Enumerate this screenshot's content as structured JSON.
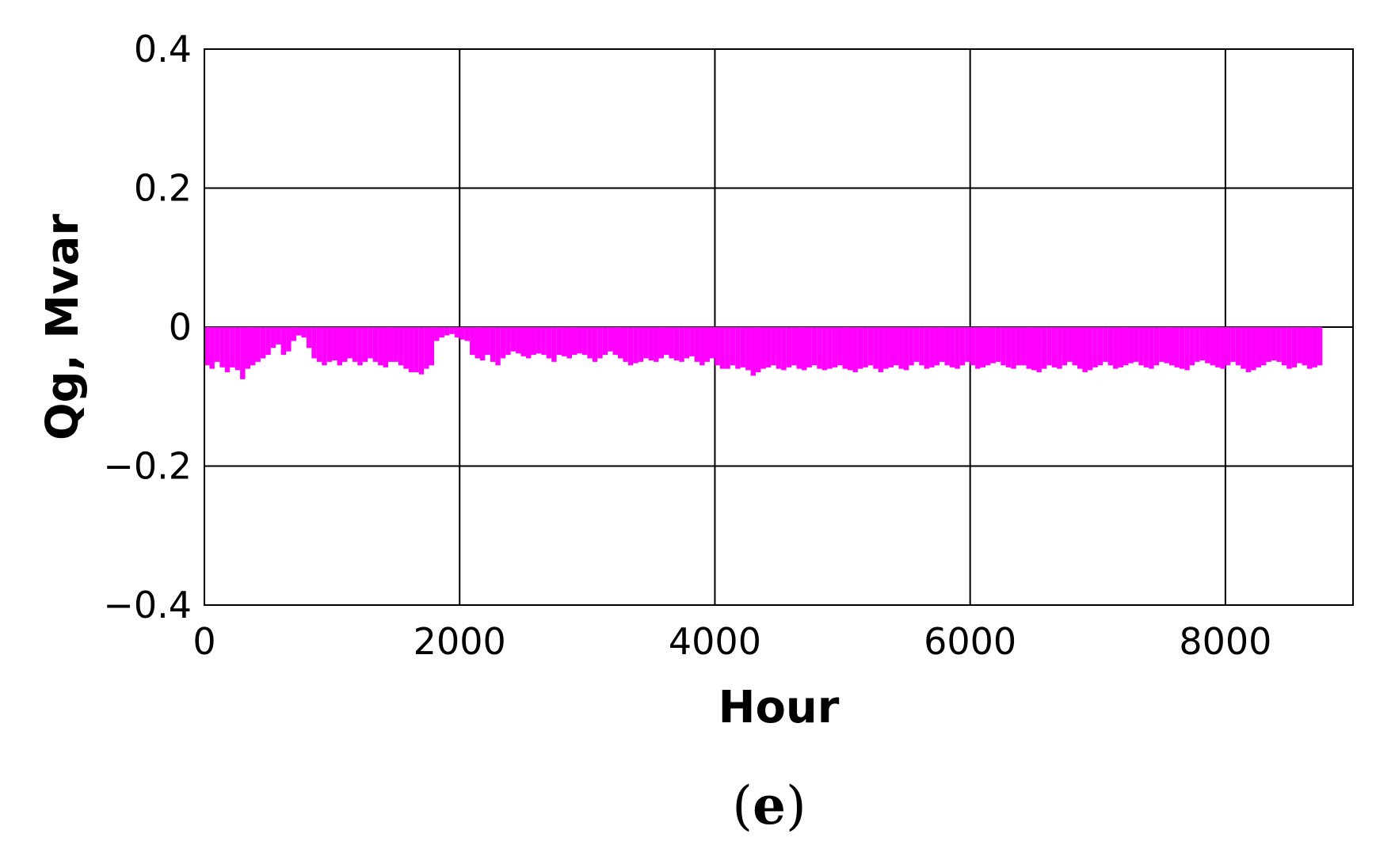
{
  "figure": {
    "caption_open": "(",
    "caption_letter": "e",
    "caption_close": ")"
  },
  "chart_data": {
    "type": "bar",
    "title": "",
    "xlabel": "Hour",
    "ylabel": "Qg, Mvar",
    "xlim": [
      0,
      9000
    ],
    "ylim": [
      -0.4,
      0.4
    ],
    "x_ticks": [
      0,
      2000,
      4000,
      6000,
      8000
    ],
    "x_tick_labels": [
      "0",
      "2000",
      "4000",
      "6000",
      "8000"
    ],
    "y_ticks": [
      0.4,
      0.2,
      0,
      -0.2,
      -0.4
    ],
    "y_tick_labels": [
      "0.4",
      "0.2",
      "0",
      "−0.2",
      "−0.4"
    ],
    "grid": true,
    "legend": "none",
    "series": [
      {
        "color": "#ff00ff",
        "x_range": [
          0,
          8760
        ],
        "x_step": 40,
        "values": [
          -0.055,
          -0.06,
          -0.05,
          -0.058,
          -0.065,
          -0.058,
          -0.062,
          -0.075,
          -0.06,
          -0.055,
          -0.05,
          -0.045,
          -0.04,
          -0.03,
          -0.025,
          -0.04,
          -0.035,
          -0.02,
          -0.012,
          -0.015,
          -0.03,
          -0.045,
          -0.05,
          -0.055,
          -0.05,
          -0.048,
          -0.055,
          -0.05,
          -0.045,
          -0.05,
          -0.055,
          -0.05,
          -0.045,
          -0.05,
          -0.055,
          -0.058,
          -0.05,
          -0.05,
          -0.055,
          -0.06,
          -0.065,
          -0.065,
          -0.068,
          -0.06,
          -0.055,
          -0.02,
          -0.015,
          -0.012,
          -0.01,
          -0.015,
          -0.018,
          -0.02,
          -0.04,
          -0.045,
          -0.048,
          -0.04,
          -0.05,
          -0.055,
          -0.045,
          -0.04,
          -0.035,
          -0.038,
          -0.042,
          -0.045,
          -0.04,
          -0.038,
          -0.04,
          -0.045,
          -0.05,
          -0.04,
          -0.042,
          -0.045,
          -0.04,
          -0.038,
          -0.04,
          -0.045,
          -0.05,
          -0.045,
          -0.04,
          -0.035,
          -0.04,
          -0.045,
          -0.05,
          -0.055,
          -0.052,
          -0.05,
          -0.045,
          -0.048,
          -0.05,
          -0.045,
          -0.04,
          -0.045,
          -0.048,
          -0.05,
          -0.045,
          -0.042,
          -0.05,
          -0.055,
          -0.05,
          -0.045,
          -0.055,
          -0.06,
          -0.06,
          -0.055,
          -0.06,
          -0.058,
          -0.062,
          -0.07,
          -0.065,
          -0.06,
          -0.058,
          -0.055,
          -0.06,
          -0.062,
          -0.058,
          -0.055,
          -0.06,
          -0.062,
          -0.058,
          -0.055,
          -0.06,
          -0.062,
          -0.06,
          -0.058,
          -0.055,
          -0.06,
          -0.062,
          -0.065,
          -0.06,
          -0.058,
          -0.055,
          -0.06,
          -0.065,
          -0.06,
          -0.058,
          -0.055,
          -0.06,
          -0.062,
          -0.055,
          -0.05,
          -0.055,
          -0.06,
          -0.058,
          -0.055,
          -0.05,
          -0.055,
          -0.058,
          -0.06,
          -0.055,
          -0.05,
          -0.055,
          -0.06,
          -0.058,
          -0.055,
          -0.052,
          -0.05,
          -0.055,
          -0.058,
          -0.06,
          -0.055,
          -0.055,
          -0.06,
          -0.062,
          -0.065,
          -0.06,
          -0.055,
          -0.058,
          -0.06,
          -0.055,
          -0.05,
          -0.055,
          -0.06,
          -0.065,
          -0.062,
          -0.058,
          -0.055,
          -0.05,
          -0.055,
          -0.06,
          -0.058,
          -0.055,
          -0.052,
          -0.05,
          -0.055,
          -0.058,
          -0.06,
          -0.055,
          -0.05,
          -0.052,
          -0.055,
          -0.058,
          -0.06,
          -0.062,
          -0.055,
          -0.05,
          -0.048,
          -0.052,
          -0.055,
          -0.058,
          -0.06,
          -0.055,
          -0.05,
          -0.055,
          -0.06,
          -0.065,
          -0.062,
          -0.058,
          -0.055,
          -0.05,
          -0.048,
          -0.05,
          -0.055,
          -0.06,
          -0.058,
          -0.052,
          -0.055,
          -0.06,
          -0.058,
          -0.055,
          -0.05,
          -0.045
        ]
      }
    ]
  }
}
